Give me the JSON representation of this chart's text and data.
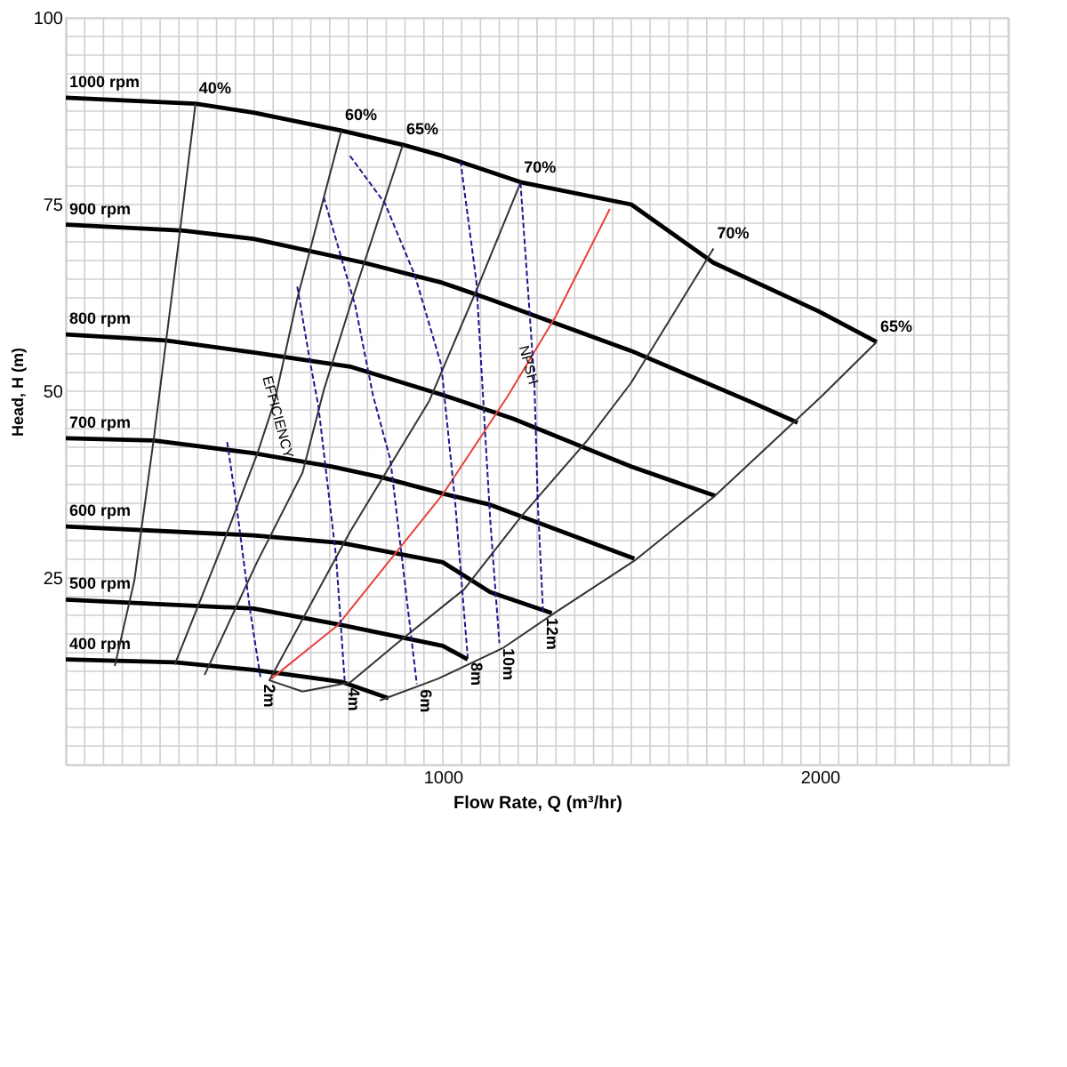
{
  "chart_data": {
    "type": "line",
    "xlabel": "Flow Rate, Q (m³/hr)",
    "ylabel": "Head, H (m)",
    "xlim": [
      0,
      2500
    ],
    "ylim": [
      0,
      100
    ],
    "xticks": [
      {
        "value": 0,
        "label": null
      },
      {
        "value": 50,
        "label": null
      },
      {
        "value": 100,
        "label": null
      },
      {
        "value": 150,
        "label": null
      },
      {
        "value": 200,
        "label": null
      },
      {
        "value": 250,
        "label": null
      },
      {
        "value": 300,
        "label": null
      },
      {
        "value": 350,
        "label": null
      },
      {
        "value": 400,
        "label": null
      },
      {
        "value": 450,
        "label": null
      },
      {
        "value": 500,
        "label": null
      },
      {
        "value": 550,
        "label": null
      },
      {
        "value": 600,
        "label": null
      },
      {
        "value": 650,
        "label": null
      },
      {
        "value": 700,
        "label": null
      },
      {
        "value": 750,
        "label": null
      },
      {
        "value": 800,
        "label": null
      },
      {
        "value": 850,
        "label": null
      },
      {
        "value": 900,
        "label": null
      },
      {
        "value": 950,
        "label": null
      },
      1000,
      {
        "value": 1050,
        "label": null
      },
      {
        "value": 1100,
        "label": null
      },
      {
        "value": 1150,
        "label": null
      },
      {
        "value": 1200,
        "label": null
      },
      {
        "value": 1250,
        "label": null
      },
      {
        "value": 1300,
        "label": null
      },
      {
        "value": 1350,
        "label": null
      },
      {
        "value": 1400,
        "label": null
      },
      {
        "value": 1450,
        "label": null
      },
      {
        "value": 1500,
        "label": null
      },
      {
        "value": 1550,
        "label": null
      },
      {
        "value": 1600,
        "label": null
      },
      {
        "value": 1650,
        "label": null
      },
      {
        "value": 1700,
        "label": null
      },
      {
        "value": 1750,
        "label": null
      },
      {
        "value": 1800,
        "label": null
      },
      {
        "value": 1850,
        "label": null
      },
      {
        "value": 1900,
        "label": null
      },
      {
        "value": 1950,
        "label": null
      },
      2000,
      {
        "value": 2050,
        "label": null
      },
      {
        "value": 2100,
        "label": null
      },
      {
        "value": 2150,
        "label": null
      },
      {
        "value": 2200,
        "label": null
      },
      {
        "value": 2250,
        "label": null
      },
      {
        "value": 2300,
        "label": null
      },
      {
        "value": 2350,
        "label": null
      },
      {
        "value": 2400,
        "label": null
      },
      {
        "value": 2450,
        "label": null
      },
      {
        "value": 2500,
        "label": null
      }
    ],
    "yticks": [
      {
        "value": 0,
        "label": null
      },
      {
        "value": 2.5,
        "label": null
      },
      {
        "value": 5,
        "label": null
      },
      {
        "value": 7.5,
        "label": null
      },
      {
        "value": 10,
        "label": null
      },
      {
        "value": 12.5,
        "label": null
      },
      {
        "value": 15,
        "label": null
      },
      {
        "value": 17.5,
        "label": null
      },
      {
        "value": 20,
        "label": null
      },
      {
        "value": 22.5,
        "label": null
      },
      25,
      {
        "value": 27.5,
        "label": null
      },
      {
        "value": 30,
        "label": null
      },
      {
        "value": 32.5,
        "label": null
      },
      {
        "value": 35,
        "label": null
      },
      {
        "value": 37.5,
        "label": null
      },
      {
        "value": 40,
        "label": null
      },
      {
        "value": 42.5,
        "label": null
      },
      {
        "value": 45,
        "label": null
      },
      {
        "value": 47.5,
        "label": null
      },
      50,
      {
        "value": 52.5,
        "label": null
      },
      {
        "value": 55,
        "label": null
      },
      {
        "value": 57.5,
        "label": null
      },
      {
        "value": 60,
        "label": null
      },
      {
        "value": 62.5,
        "label": null
      },
      {
        "value": 65,
        "label": null
      },
      {
        "value": 67.5,
        "label": null
      },
      {
        "value": 70,
        "label": null
      },
      {
        "value": 72.5,
        "label": null
      },
      75,
      {
        "value": 77.5,
        "label": null
      },
      {
        "value": 80,
        "label": null
      },
      {
        "value": 82.5,
        "label": null
      },
      {
        "value": 85,
        "label": null
      },
      {
        "value": 87.5,
        "label": null
      },
      {
        "value": 90,
        "label": null
      },
      {
        "value": 92.5,
        "label": null
      },
      {
        "value": 95,
        "label": null
      },
      {
        "value": 97.5,
        "label": null
      },
      100
    ],
    "grid": true,
    "series": [
      {
        "name": "1000 rpm",
        "color": "#000000",
        "x": [
          2151,
          1997,
          1718,
          1500,
          1206,
          1000,
          894,
          731,
          498,
          344,
          0
        ],
        "values": [
          56.6,
          60.7,
          67.2,
          75.0,
          78.0,
          81.5,
          83.0,
          84.9,
          87.3,
          88.5,
          89.3
        ]
      },
      {
        "name": "900 rpm",
        "color": "#000000",
        "x": [
          1941,
          1811,
          1500,
          1126,
          1000,
          791,
          498,
          312,
          0
        ],
        "values": [
          45.8,
          48.7,
          55.4,
          62.3,
          64.5,
          67.2,
          70.4,
          71.5,
          72.3
        ]
      },
      {
        "name": "800 rpm",
        "color": "#000000",
        "x": [
          1722,
          1500,
          1187,
          1000,
          754,
          498,
          265,
          0
        ],
        "values": [
          36.0,
          39.9,
          46.3,
          49.5,
          53.3,
          55.2,
          56.8,
          57.6
        ]
      },
      {
        "name": "700 rpm",
        "color": "#000000",
        "x": [
          1508,
          1126,
          1000,
          843,
          707,
          498,
          233,
          0
        ],
        "values": [
          27.6,
          34.8,
          36.3,
          38.4,
          39.9,
          41.7,
          43.4,
          43.7
        ]
      },
      {
        "name": "600 rpm",
        "color": "#000000",
        "x": [
          1289,
          1126,
          1000,
          731,
          498,
          0
        ],
        "values": [
          20.3,
          23.1,
          27.1,
          29.7,
          30.7,
          31.9
        ]
      },
      {
        "name": "500 rpm",
        "color": "#000000",
        "x": [
          1066,
          1000,
          731,
          498,
          0
        ],
        "values": [
          14.1,
          15.9,
          18.7,
          20.9,
          22.1
        ]
      },
      {
        "name": "400 rpm",
        "color": "#000000",
        "x": [
          856,
          731,
          498,
          289,
          0
        ],
        "values": [
          8.9,
          11.1,
          12.7,
          13.7,
          14.1
        ]
      },
      {
        "name": "40%",
        "color": "#333333",
        "x": [
          130,
          182,
          233,
          303,
          344
        ],
        "values": [
          13.2,
          24.7,
          43.5,
          71.5,
          88.5
        ]
      },
      {
        "name": "60%",
        "color": "#333333",
        "x": [
          289,
          419,
          507,
          554,
          614,
          731
        ],
        "values": [
          13.4,
          29.9,
          41.5,
          48.7,
          62.4,
          84.9
        ]
      },
      {
        "name": "65%",
        "color": "#333333",
        "x": [
          368,
          507,
          628,
          684,
          754,
          894
        ],
        "values": [
          12.0,
          27.1,
          39.1,
          50.1,
          61.4,
          83.0
        ]
      },
      {
        "name": "70%",
        "color": "#333333",
        "x": [
          628,
          540,
          754,
          964,
          1089,
          1206
        ],
        "values": [
          9.8,
          11.3,
          31.2,
          48.7,
          63.5,
          77.9
        ]
      },
      {
        "name": "70%",
        "color": "#333333",
        "x": [
          628,
          754,
          880,
          1057,
          1206,
          1383,
          1499,
          1718
        ],
        "values": [
          9.8,
          11.0,
          16.3,
          23.5,
          33.1,
          43.4,
          51.1,
          69.1
        ]
      },
      {
        "name": "65%",
        "color": "#333333",
        "x": [
          833,
          987,
          1159,
          1299,
          1508,
          1722,
          2002,
          2151
        ],
        "values": [
          8.6,
          11.5,
          15.6,
          20.4,
          27.3,
          36.0,
          49.2,
          56.6
        ]
      },
      {
        "color": "#e8413c",
        "x": [
          545,
          722,
          1000,
          1173,
          1299,
          1443
        ],
        "values": [
          11.5,
          18.7,
          36.2,
          49.4,
          60.0,
          74.4
        ]
      },
      {
        "name": "2m",
        "color": "#1a1a8c",
        "line_style": "dashed",
        "x": [
          428,
          452,
          489,
          517
        ],
        "values": [
          43.2,
          35.0,
          20.6,
          11.5
        ]
      },
      {
        "name": "4m",
        "color": "#1a1a8c",
        "line_style": "dashed",
        "x": [
          614,
          647,
          670,
          717,
          740
        ],
        "values": [
          64.0,
          54.2,
          48.0,
          27.8,
          11.0
        ]
      },
      {
        "name": "6m",
        "color": "#1a1a8c",
        "line_style": "dashed",
        "x": [
          684,
          768,
          815,
          861,
          931
        ],
        "values": [
          76.0,
          61.4,
          49.4,
          40.8,
          10.8
        ]
      },
      {
        "name": "8m",
        "color": "#1a1a8c",
        "line_style": "dashed",
        "x": [
          754,
          847,
          926,
          996,
          1033,
          1066
        ],
        "values": [
          81.5,
          75.1,
          65.5,
          53.5,
          35.0,
          14.4
        ]
      },
      {
        "name": "10m",
        "color": "#1a1a8c",
        "line_style": "dashed",
        "x": [
          1047,
          1089,
          1126,
          1150
        ],
        "values": [
          80.8,
          64.7,
          32.6,
          16.3
        ]
      },
      {
        "name": "12m",
        "color": "#1a1a8c",
        "line_style": "dashed",
        "x": [
          1206,
          1229,
          1243,
          1252,
          1266
        ],
        "values": [
          77.9,
          61.4,
          51.1,
          35.0,
          20.4
        ]
      }
    ],
    "annotations": [
      {
        "text": "EFFICIENCY",
        "x": 560,
        "y": 46.5
      },
      {
        "text": "NPSH",
        "x": 1225,
        "y": 53.5
      }
    ]
  }
}
